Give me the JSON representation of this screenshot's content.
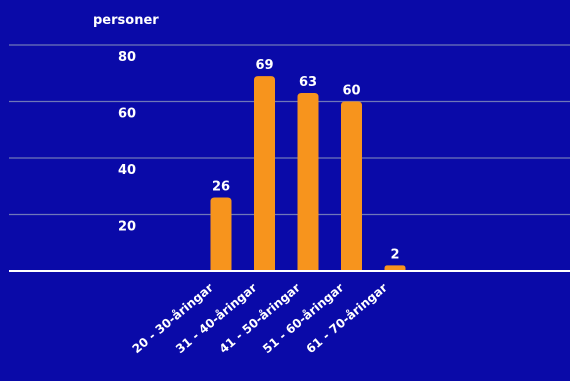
{
  "chart_data": {
    "type": "bar",
    "ylabel": "personer",
    "xlabel": "",
    "categories": [
      "20 - 30-åringar",
      "31 - 40-åringar",
      "41 - 50-åringar",
      "51 - 60-åringar",
      "61 - 70-åringar"
    ],
    "values": [
      26,
      69,
      63,
      60,
      2
    ],
    "value_labels": [
      "26",
      "69",
      "63",
      "60",
      "2"
    ],
    "yticks": [
      "20",
      "40",
      "60",
      "80"
    ],
    "ytick_values": [
      20,
      40,
      60,
      80
    ],
    "ylim": [
      0,
      80
    ],
    "grid": true,
    "legend": "none",
    "colors": {
      "background": "#0a0aa8",
      "bar": "#f7941d",
      "grid": "#6f77b8",
      "axis": "#ffffff",
      "text": "#ffffff"
    }
  }
}
